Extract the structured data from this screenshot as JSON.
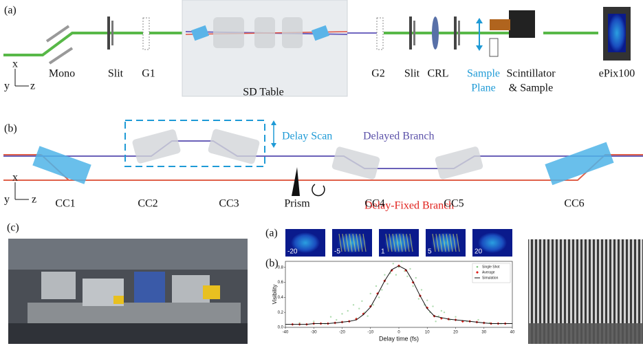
{
  "panel_a": {
    "label": "(a)",
    "axes": {
      "x": "x",
      "y": "y",
      "z": "z"
    },
    "mono": "Mono",
    "slit1": "Slit",
    "g1": "G1",
    "table": "SD Table",
    "g2": "G2",
    "slit2": "Slit",
    "crl": "CRL",
    "sample_plane": [
      "Sample",
      "Plane"
    ],
    "scintillator": [
      "Scintillator",
      "& Sample"
    ],
    "detector": "ePix100"
  },
  "panel_b": {
    "label": "(b)",
    "axes": {
      "x": "x",
      "y": "y",
      "z": "z"
    },
    "delay_scan": "Delay Scan",
    "delayed_branch": "Delayed Branch",
    "fixed_branch": "Delay-Fixed Branch",
    "prism": "Prism",
    "crystals": [
      "CC1",
      "CC2",
      "CC3",
      "CC4",
      "CC5",
      "CC6"
    ]
  },
  "panel_c": {
    "label": "(c)"
  },
  "inset": {
    "label_a": "(a)",
    "frames": [
      "-20",
      "-5",
      "1",
      "5",
      "20"
    ],
    "label_b": "(b)",
    "chart_data": {
      "type": "line",
      "x_label": "Delay time (fs)",
      "y_label": "Visibility",
      "xlim": [
        -40,
        40
      ],
      "ylim": [
        0,
        0.88
      ],
      "xticks": [
        -40,
        -30,
        -20,
        -10,
        0,
        10,
        20,
        30,
        40
      ],
      "yticks": [
        {
          "value": 0,
          "label": "0.0"
        },
        0.2,
        0.4,
        0.6,
        0.8
      ],
      "legend": "upper right",
      "series": [
        {
          "name": "Single Shot",
          "color": "#7cc47c",
          "marker": "dot",
          "x": [
            -35,
            -30,
            -26,
            -22,
            -20,
            -18,
            -16,
            -15,
            -13,
            -12,
            -10,
            -9,
            -8,
            -6,
            -5,
            -4,
            -3,
            -2,
            -1,
            0,
            1,
            2,
            3,
            4,
            5,
            6,
            7,
            8,
            9,
            10,
            11,
            12,
            14,
            16,
            18,
            20,
            24,
            28,
            32,
            36,
            -24,
            -14,
            -11,
            -7,
            13,
            15
          ],
          "values": [
            0.06,
            0.08,
            0.05,
            0.1,
            0.18,
            0.22,
            0.3,
            0.12,
            0.35,
            0.2,
            0.45,
            0.3,
            0.55,
            0.5,
            0.7,
            0.58,
            0.72,
            0.85,
            0.7,
            0.8,
            0.88,
            0.75,
            0.68,
            0.78,
            0.55,
            0.66,
            0.38,
            0.5,
            0.3,
            0.36,
            0.2,
            0.28,
            0.15,
            0.2,
            0.1,
            0.14,
            0.08,
            0.1,
            0.06,
            0.05,
            0.14,
            0.25,
            0.15,
            0.4,
            0.08,
            0.22
          ]
        },
        {
          "name": "Average",
          "color": "#e0201b",
          "marker": "diamond",
          "x": [
            -37.5,
            -35,
            -32.5,
            -30,
            -27.5,
            -25,
            -22.5,
            -20,
            -17.5,
            -15,
            -12.5,
            -10,
            -7.5,
            -5,
            -2.5,
            0,
            2.5,
            5,
            7.5,
            10,
            12.5,
            15,
            17.5,
            20,
            22.5,
            25,
            27.5,
            30,
            32.5,
            35,
            37.5
          ],
          "values": [
            0.04,
            0.04,
            0.04,
            0.05,
            0.05,
            0.05,
            0.06,
            0.07,
            0.08,
            0.11,
            0.18,
            0.28,
            0.45,
            0.62,
            0.76,
            0.82,
            0.76,
            0.6,
            0.42,
            0.26,
            0.15,
            0.12,
            0.11,
            0.1,
            0.08,
            0.08,
            0.07,
            0.06,
            0.05,
            0.05,
            0.05
          ]
        },
        {
          "name": "Simulation",
          "color": "#111111",
          "marker": "line",
          "x": [
            -40,
            -37.5,
            -35,
            -32.5,
            -30,
            -27.5,
            -25,
            -22.5,
            -20,
            -17.5,
            -15,
            -12.5,
            -10,
            -7.5,
            -5,
            -2.5,
            0,
            2.5,
            5,
            7.5,
            10,
            12.5,
            15,
            17.5,
            20,
            22.5,
            25,
            27.5,
            30,
            32.5,
            35,
            37.5,
            40
          ],
          "values": [
            0.04,
            0.04,
            0.04,
            0.04,
            0.05,
            0.05,
            0.05,
            0.06,
            0.07,
            0.08,
            0.1,
            0.17,
            0.27,
            0.44,
            0.62,
            0.77,
            0.82,
            0.77,
            0.61,
            0.42,
            0.25,
            0.15,
            0.13,
            0.11,
            0.1,
            0.09,
            0.08,
            0.07,
            0.06,
            0.05,
            0.05,
            0.05,
            0.05
          ]
        }
      ]
    }
  }
}
